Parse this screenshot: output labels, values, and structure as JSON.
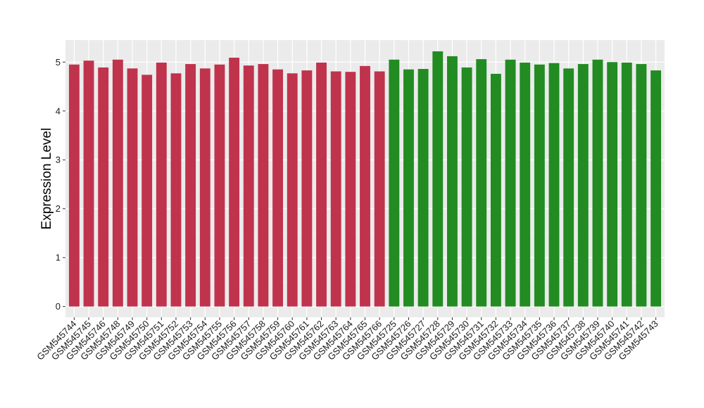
{
  "chart_data": {
    "type": "bar",
    "title": "",
    "xlabel": "",
    "ylabel": "Expression Level",
    "ylim": [
      -0.22,
      5.45
    ],
    "yticks": [
      0,
      1,
      2,
      3,
      4,
      5
    ],
    "ytick_labels": [
      "0",
      "1",
      "2",
      "3",
      "4",
      "5"
    ],
    "grid": true,
    "panel_background": "#ebebeb",
    "categories": [
      "GSM545744",
      "GSM545745",
      "GSM545746",
      "GSM545748",
      "GSM545749",
      "GSM545750",
      "GSM545751",
      "GSM545752",
      "GSM545753",
      "GSM545754",
      "GSM545755",
      "GSM545756",
      "GSM545757",
      "GSM545758",
      "GSM545759",
      "GSM545760",
      "GSM545761",
      "GSM545762",
      "GSM545763",
      "GSM545764",
      "GSM545765",
      "GSM545766",
      "GSM545725",
      "GSM545726",
      "GSM545727",
      "GSM545728",
      "GSM545729",
      "GSM545730",
      "GSM545731",
      "GSM545732",
      "GSM545733",
      "GSM545734",
      "GSM545735",
      "GSM545736",
      "GSM545737",
      "GSM545738",
      "GSM545739",
      "GSM545740",
      "GSM545741",
      "GSM545742",
      "GSM545743"
    ],
    "values": [
      4.95,
      5.03,
      4.89,
      5.05,
      4.87,
      4.74,
      4.99,
      4.77,
      4.96,
      4.87,
      4.95,
      5.09,
      4.93,
      4.96,
      4.85,
      4.77,
      4.83,
      4.99,
      4.81,
      4.8,
      4.92,
      4.81,
      5.05,
      4.85,
      4.86,
      5.22,
      5.12,
      4.89,
      5.06,
      4.76,
      5.05,
      4.99,
      4.95,
      4.98,
      4.87,
      4.96,
      5.05,
      5.0,
      4.99,
      4.96,
      4.83
    ],
    "bar_colors": [
      "#c0334d",
      "#c0334d",
      "#c0334d",
      "#c0334d",
      "#c0334d",
      "#c0334d",
      "#c0334d",
      "#c0334d",
      "#c0334d",
      "#c0334d",
      "#c0334d",
      "#c0334d",
      "#c0334d",
      "#c0334d",
      "#c0334d",
      "#c0334d",
      "#c0334d",
      "#c0334d",
      "#c0334d",
      "#c0334d",
      "#c0334d",
      "#c0334d",
      "#228b22",
      "#228b22",
      "#228b22",
      "#228b22",
      "#228b22",
      "#228b22",
      "#228b22",
      "#228b22",
      "#228b22",
      "#228b22",
      "#228b22",
      "#228b22",
      "#228b22",
      "#228b22",
      "#228b22",
      "#228b22",
      "#228b22",
      "#228b22",
      "#228b22"
    ]
  }
}
